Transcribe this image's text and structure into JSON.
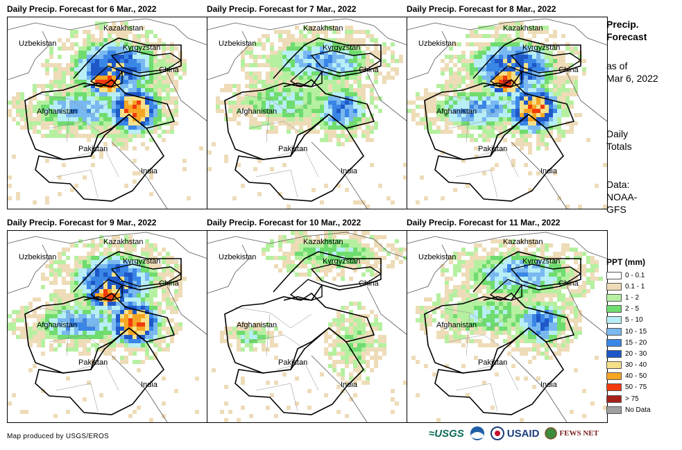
{
  "panels": [
    {
      "title": "Daily Precip. Forecast for 6 Mar., 2022",
      "level": "heavy"
    },
    {
      "title": "Daily Precip. Forecast for 7 Mar., 2022",
      "level": "moderate"
    },
    {
      "title": "Daily Precip. Forecast for 8 Mar., 2022",
      "level": "heavy"
    },
    {
      "title": "Daily Precip. Forecast for 9 Mar., 2022",
      "level": "heavy"
    },
    {
      "title": "Daily Precip. Forecast for 10 Mar., 2022",
      "level": "light"
    },
    {
      "title": "Daily Precip. Forecast for 11 Mar., 2022",
      "level": "moderate"
    }
  ],
  "countries": {
    "kazakhstan": "Kazakhstan",
    "uzbekistan": "Uzbekistan",
    "kyrgyzstan": "Kyrgyzstan",
    "china": "China",
    "afghanistan": "Afghanistan",
    "pakistan": "Pakistan",
    "india": "India"
  },
  "side": {
    "title1": "Precip.",
    "title2": "Forecast",
    "asof1": "as of",
    "asof2": "Mar 6, 2022",
    "daily1": "Daily",
    "daily2": "Totals",
    "data1": "Data:",
    "data2": "NOAA-",
    "data3": "GFS"
  },
  "legend": {
    "title": "PPT (mm)",
    "items": [
      {
        "label": "0 - 0.1",
        "color": "#ffffff"
      },
      {
        "label": "0.1 - 1",
        "color": "#eedcb8"
      },
      {
        "label": "1 - 2",
        "color": "#b5f0a0"
      },
      {
        "label": "2 - 5",
        "color": "#6fdc6f"
      },
      {
        "label": "5 - 10",
        "color": "#b8eef5"
      },
      {
        "label": "10 - 15",
        "color": "#7ab8f0"
      },
      {
        "label": "15 - 20",
        "color": "#3a86e6"
      },
      {
        "label": "20 - 30",
        "color": "#1e58c8"
      },
      {
        "label": "30 - 40",
        "color": "#f5e08a"
      },
      {
        "label": "40 - 50",
        "color": "#f5a623"
      },
      {
        "label": "50 - 75",
        "color": "#f23a0c"
      },
      {
        "label": "> 75",
        "color": "#a8201a"
      },
      {
        "label": "No Data",
        "color": "#a0a0a0"
      }
    ]
  },
  "credit": "Map produced by USGS/EROS",
  "logos": {
    "usgs": "≈USGS",
    "usaid": "USAID",
    "fews": "FEWS NET"
  }
}
